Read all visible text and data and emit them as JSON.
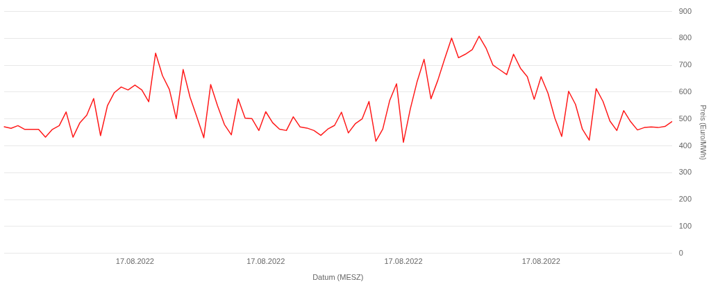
{
  "chart_data": {
    "type": "line",
    "xlabel": "Datum (MESZ)",
    "ylabel": "Preis (Euro/MWh)",
    "categories": [
      null,
      null,
      null,
      null,
      null,
      null,
      null,
      null,
      null,
      null,
      null,
      null,
      null,
      null,
      null,
      null,
      null,
      null,
      null,
      "17.08.2022",
      null,
      null,
      null,
      null,
      null,
      null,
      null,
      null,
      null,
      null,
      null,
      null,
      null,
      null,
      null,
      null,
      null,
      null,
      "17.08.2022",
      null,
      null,
      null,
      null,
      null,
      null,
      null,
      null,
      null,
      null,
      null,
      null,
      null,
      null,
      null,
      null,
      null,
      null,
      null,
      "17.08.2022",
      null,
      null,
      null,
      null,
      null,
      null,
      null,
      null,
      null,
      null,
      null,
      null,
      null,
      null,
      null,
      null,
      null,
      null,
      null,
      "17.08.2022",
      null,
      null,
      null,
      null,
      null,
      null,
      null,
      null,
      null,
      null,
      null,
      null,
      null,
      null,
      null,
      null,
      null,
      null,
      null
    ],
    "series": [
      {
        "color": "#ff1a1a",
        "values": [
          471,
          465,
          475,
          461,
          461,
          461,
          432,
          461,
          475,
          526,
          432,
          486,
          514,
          576,
          438,
          549,
          598,
          619,
          608,
          626,
          608,
          564,
          745,
          661,
          610,
          501,
          684,
          581,
          507,
          430,
          628,
          549,
          479,
          441,
          575,
          503,
          501,
          457,
          527,
          486,
          462,
          457,
          508,
          470,
          466,
          457,
          439,
          462,
          476,
          525,
          448,
          482,
          500,
          565,
          417,
          462,
          568,
          631,
          413,
          537,
          640,
          722,
          575,
          644,
          724,
          801,
          728,
          741,
          758,
          808,
          764,
          701,
          683,
          665,
          741,
          689,
          657,
          573,
          657,
          596,
          503,
          435,
          603,
          554,
          462,
          421,
          613,
          565,
          492,
          457,
          531,
          490,
          459,
          468,
          470,
          468,
          472,
          490
        ]
      }
    ],
    "ylim": [
      0,
      900
    ],
    "yticks": [
      0,
      100,
      200,
      300,
      400,
      500,
      600,
      700,
      800,
      900
    ],
    "grid": "y",
    "legend": false
  }
}
